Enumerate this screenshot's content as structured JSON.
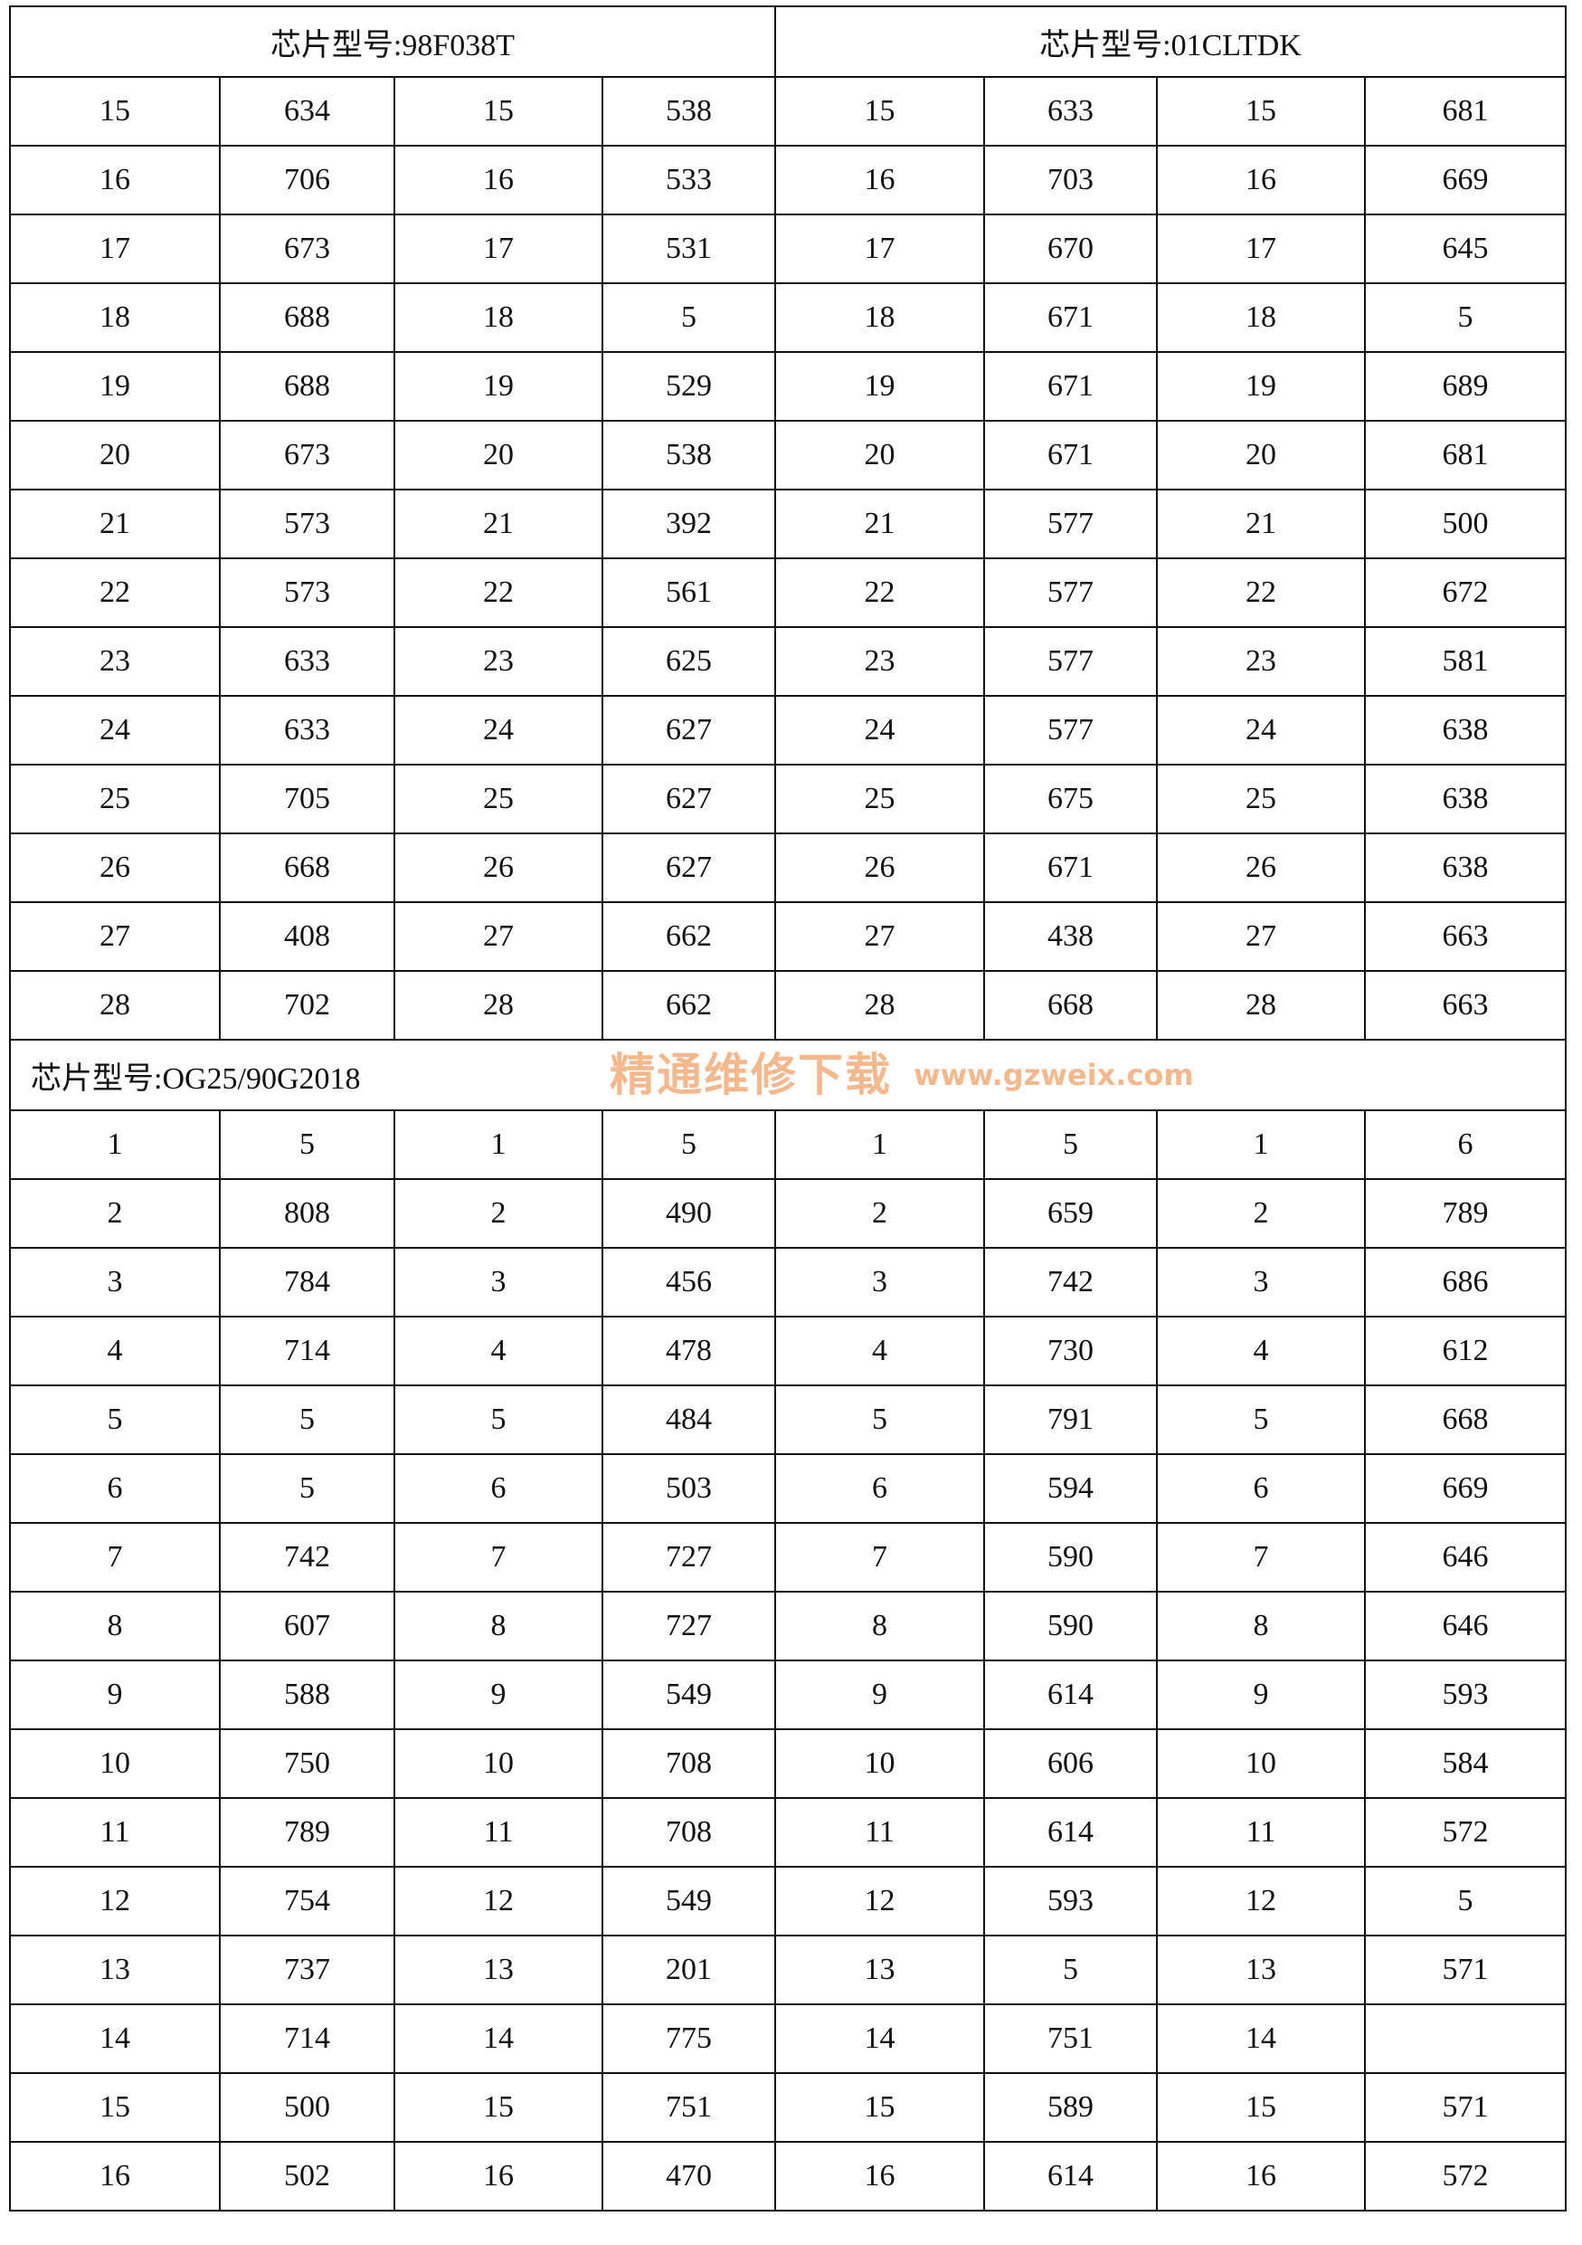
{
  "top_left_title": "芯片型号:98F038T",
  "top_right_title": "芯片型号:01CLTDK",
  "top_rows": [
    [
      "15",
      "634",
      "15",
      "538",
      "15",
      "633",
      "15",
      "681"
    ],
    [
      "16",
      "706",
      "16",
      "533",
      "16",
      "703",
      "16",
      "669"
    ],
    [
      "17",
      "673",
      "17",
      "531",
      "17",
      "670",
      "17",
      "645"
    ],
    [
      "18",
      "688",
      "18",
      "5",
      "18",
      "671",
      "18",
      "5"
    ],
    [
      "19",
      "688",
      "19",
      "529",
      "19",
      "671",
      "19",
      "689"
    ],
    [
      "20",
      "673",
      "20",
      "538",
      "20",
      "671",
      "20",
      "681"
    ],
    [
      "21",
      "573",
      "21",
      "392",
      "21",
      "577",
      "21",
      "500"
    ],
    [
      "22",
      "573",
      "22",
      "561",
      "22",
      "577",
      "22",
      "672"
    ],
    [
      "23",
      "633",
      "23",
      "625",
      "23",
      "577",
      "23",
      "581"
    ],
    [
      "24",
      "633",
      "24",
      "627",
      "24",
      "577",
      "24",
      "638"
    ],
    [
      "25",
      "705",
      "25",
      "627",
      "25",
      "675",
      "25",
      "638"
    ],
    [
      "26",
      "668",
      "26",
      "627",
      "26",
      "671",
      "26",
      "638"
    ],
    [
      "27",
      "408",
      "27",
      "662",
      "27",
      "438",
      "27",
      "663"
    ],
    [
      "28",
      "702",
      "28",
      "662",
      "28",
      "668",
      "28",
      "663"
    ]
  ],
  "bottom_title": "芯片型号:OG25/90G2018",
  "bottom_rows": [
    [
      "1",
      "5",
      "1",
      "5",
      "1",
      "5",
      "1",
      "6"
    ],
    [
      "2",
      "808",
      "2",
      "490",
      "2",
      "659",
      "2",
      "789"
    ],
    [
      "3",
      "784",
      "3",
      "456",
      "3",
      "742",
      "3",
      "686"
    ],
    [
      "4",
      "714",
      "4",
      "478",
      "4",
      "730",
      "4",
      "612"
    ],
    [
      "5",
      "5",
      "5",
      "484",
      "5",
      "791",
      "5",
      "668"
    ],
    [
      "6",
      "5",
      "6",
      "503",
      "6",
      "594",
      "6",
      "669"
    ],
    [
      "7",
      "742",
      "7",
      "727",
      "7",
      "590",
      "7",
      "646"
    ],
    [
      "8",
      "607",
      "8",
      "727",
      "8",
      "590",
      "8",
      "646"
    ],
    [
      "9",
      "588",
      "9",
      "549",
      "9",
      "614",
      "9",
      "593"
    ],
    [
      "10",
      "750",
      "10",
      "708",
      "10",
      "606",
      "10",
      "584"
    ],
    [
      "11",
      "789",
      "11",
      "708",
      "11",
      "614",
      "11",
      "572"
    ],
    [
      "12",
      "754",
      "12",
      "549",
      "12",
      "593",
      "12",
      "5"
    ],
    [
      "13",
      "737",
      "13",
      "201",
      "13",
      "5",
      "13",
      "571"
    ],
    [
      "14",
      "714",
      "14",
      "775",
      "14",
      "751",
      "14",
      ""
    ],
    [
      "15",
      "500",
      "15",
      "751",
      "15",
      "589",
      "15",
      "571"
    ],
    [
      "16",
      "502",
      "16",
      "470",
      "16",
      "614",
      "16",
      "572"
    ]
  ],
  "watermark": {
    "text": "精通维修下载",
    "url": "www.gzweix.com",
    "color": "#f5b88c"
  }
}
